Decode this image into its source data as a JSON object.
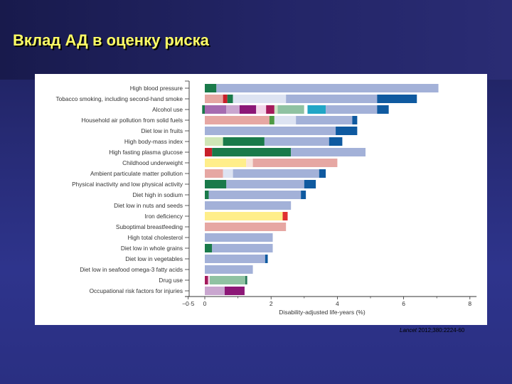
{
  "slide": {
    "title": "Вклад АД в оценку риска",
    "citation_journal": "Lancet",
    "citation_ref": "2012;380:2224-60"
  },
  "chart_data": {
    "type": "bar",
    "orientation": "horizontal",
    "stacked": true,
    "xlabel": "Disability-adjusted life-years (%)",
    "ylabel": "",
    "xlim": [
      -0.5,
      8.2
    ],
    "xticks": [
      -0.5,
      0,
      2,
      4,
      6,
      8
    ],
    "xtick_labels": [
      "−0·5",
      "0",
      "2",
      "4",
      "6",
      "8"
    ],
    "grid": false,
    "categories": [
      "High blood pressure",
      "Tobacco smoking, including second-hand smoke",
      "Alcohol use",
      "Household air pollution from solid fuels",
      "Diet low in fruits",
      "High body-mass index",
      "High fasting plasma glucose",
      "Childhood underweight",
      "Ambient particulate matter pollution",
      "Physical inactivity and low physical activity",
      "Diet high in sodium",
      "Diet low in nuts and seeds",
      "Iron deficiency",
      "Suboptimal breastfeeding",
      "High total cholesterol",
      "Diet low in whole grains",
      "Diet low in vegetables",
      "Diet low in seafood omega-3 fatty acids",
      "Drug use",
      "Occupational risk factors for injuries"
    ],
    "segments": [
      [
        {
          "from": 0,
          "to": 0.35,
          "color": "#1a7a4a"
        },
        {
          "from": 0.35,
          "to": 7.05,
          "color": "#a3b1d8"
        }
      ],
      [
        {
          "from": 0,
          "to": 0.55,
          "color": "#e6a7a3"
        },
        {
          "from": 0.55,
          "to": 0.68,
          "color": "#c8202a"
        },
        {
          "from": 0.68,
          "to": 0.85,
          "color": "#1a7a4a"
        },
        {
          "from": 0.85,
          "to": 2.45,
          "color": "#dde3f2"
        },
        {
          "from": 2.45,
          "to": 5.2,
          "color": "#a3b1d8"
        },
        {
          "from": 5.2,
          "to": 6.4,
          "color": "#0f5aa0"
        }
      ],
      [
        {
          "from": -0.08,
          "to": 0,
          "color": "#1a7a4a"
        },
        {
          "from": 0,
          "to": 0.65,
          "color": "#a66bb0"
        },
        {
          "from": 0.65,
          "to": 1.05,
          "color": "#c9a6cf"
        },
        {
          "from": 1.05,
          "to": 1.55,
          "color": "#8c1877"
        },
        {
          "from": 1.55,
          "to": 1.85,
          "color": "#f2d6ea"
        },
        {
          "from": 1.85,
          "to": 2.1,
          "color": "#a51a5c"
        },
        {
          "from": 2.1,
          "to": 2.2,
          "color": "#cfe3c6"
        },
        {
          "from": 2.2,
          "to": 3.0,
          "color": "#8fc2a2"
        },
        {
          "from": 3.0,
          "to": 3.1,
          "color": "#ffffff"
        },
        {
          "from": 3.1,
          "to": 3.65,
          "color": "#21a6c6"
        },
        {
          "from": 3.65,
          "to": 5.2,
          "color": "#a3b1d8"
        },
        {
          "from": 5.2,
          "to": 5.55,
          "color": "#0f5aa0"
        }
      ],
      [
        {
          "from": 0,
          "to": 1.95,
          "color": "#e6a7a3"
        },
        {
          "from": 1.95,
          "to": 2.1,
          "color": "#4e9a44"
        },
        {
          "from": 2.1,
          "to": 2.75,
          "color": "#dde3f2"
        },
        {
          "from": 2.75,
          "to": 4.45,
          "color": "#a3b1d8"
        },
        {
          "from": 4.45,
          "to": 4.6,
          "color": "#0f5aa0"
        }
      ],
      [
        {
          "from": 0,
          "to": 3.95,
          "color": "#a3b1d8"
        },
        {
          "from": 3.95,
          "to": 4.6,
          "color": "#0f5aa0"
        }
      ],
      [
        {
          "from": 0,
          "to": 0.55,
          "color": "#cfe6b6"
        },
        {
          "from": 0.55,
          "to": 1.8,
          "color": "#1a7a4a"
        },
        {
          "from": 1.8,
          "to": 3.75,
          "color": "#a3b1d8"
        },
        {
          "from": 3.75,
          "to": 4.15,
          "color": "#0f5aa0"
        }
      ],
      [
        {
          "from": 0,
          "to": 0.22,
          "color": "#c8202a"
        },
        {
          "from": 0.22,
          "to": 2.6,
          "color": "#1a7a4a"
        },
        {
          "from": 2.6,
          "to": 4.85,
          "color": "#a3b1d8"
        }
      ],
      [
        {
          "from": 0,
          "to": 1.25,
          "color": "#ffee8a"
        },
        {
          "from": 1.25,
          "to": 1.45,
          "color": "#f7e4dc"
        },
        {
          "from": 1.45,
          "to": 4.0,
          "color": "#e6a7a3"
        }
      ],
      [
        {
          "from": 0,
          "to": 0.55,
          "color": "#e6a7a3"
        },
        {
          "from": 0.55,
          "to": 0.85,
          "color": "#dde3f2"
        },
        {
          "from": 0.85,
          "to": 3.45,
          "color": "#a3b1d8"
        },
        {
          "from": 3.45,
          "to": 3.65,
          "color": "#0f5aa0"
        }
      ],
      [
        {
          "from": 0,
          "to": 0.65,
          "color": "#1a7a4a"
        },
        {
          "from": 0.65,
          "to": 3.0,
          "color": "#a3b1d8"
        },
        {
          "from": 3.0,
          "to": 3.35,
          "color": "#0f5aa0"
        }
      ],
      [
        {
          "from": 0,
          "to": 0.12,
          "color": "#1a7a4a"
        },
        {
          "from": 0.12,
          "to": 2.9,
          "color": "#a3b1d8"
        },
        {
          "from": 2.9,
          "to": 3.05,
          "color": "#0f5aa0"
        }
      ],
      [
        {
          "from": 0,
          "to": 2.6,
          "color": "#a3b1d8"
        }
      ],
      [
        {
          "from": 0,
          "to": 2.35,
          "color": "#ffee8a"
        },
        {
          "from": 2.35,
          "to": 2.5,
          "color": "#e03030"
        }
      ],
      [
        {
          "from": 0,
          "to": 2.45,
          "color": "#e6a7a3"
        }
      ],
      [
        {
          "from": 0,
          "to": 2.05,
          "color": "#a3b1d8"
        }
      ],
      [
        {
          "from": 0,
          "to": 0.22,
          "color": "#1a7a4a"
        },
        {
          "from": 0.22,
          "to": 2.05,
          "color": "#a3b1d8"
        }
      ],
      [
        {
          "from": 0,
          "to": 1.82,
          "color": "#a3b1d8"
        },
        {
          "from": 1.82,
          "to": 1.9,
          "color": "#0f5aa0"
        }
      ],
      [
        {
          "from": 0,
          "to": 1.45,
          "color": "#a3b1d8"
        }
      ],
      [
        {
          "from": 0,
          "to": 0.1,
          "color": "#a51a5c"
        },
        {
          "from": 0.1,
          "to": 0.15,
          "color": "#f2d6ea"
        },
        {
          "from": 0.15,
          "to": 1.22,
          "color": "#8fc2a2"
        },
        {
          "from": 1.22,
          "to": 1.28,
          "color": "#2a7a5a"
        }
      ],
      [
        {
          "from": 0,
          "to": 0.6,
          "color": "#c9a6cf"
        },
        {
          "from": 0.6,
          "to": 1.2,
          "color": "#8c1877"
        }
      ]
    ]
  }
}
